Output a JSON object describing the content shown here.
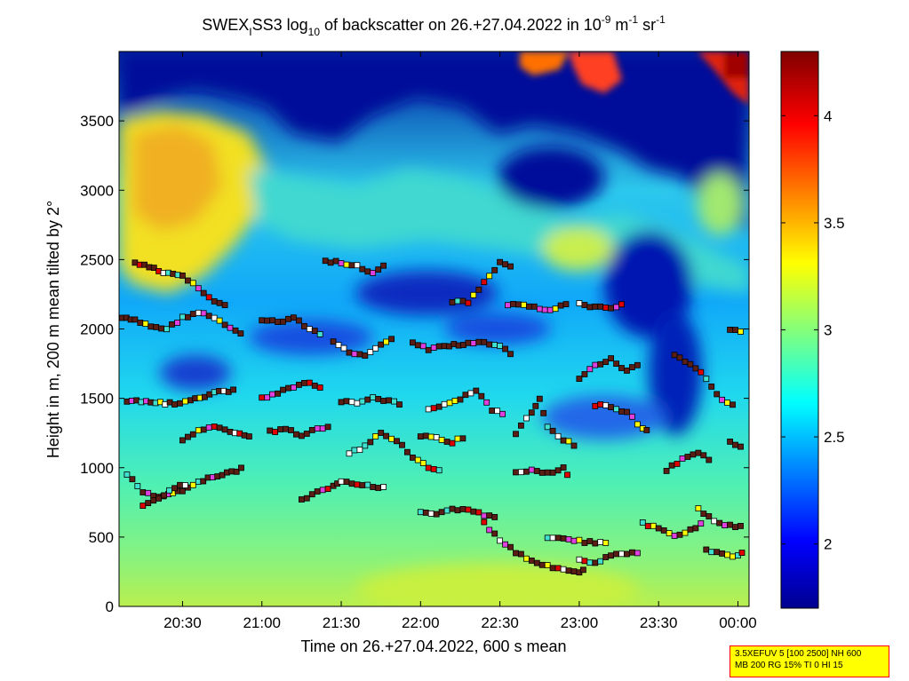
{
  "chart_data": {
    "type": "heatmap",
    "title_parts": {
      "prefix": "SWEX",
      "prefix_sub": "I",
      "name": "SS3 log",
      "log_sub": "10",
      "middle": " of backscatter on 26.+27.04.2022 in 10",
      "exp1": "-9",
      "unit_m": " m",
      "exp2": "-1",
      "unit_sr": " sr",
      "exp3": "-1"
    },
    "xlabel": "Time on 26.+27.04.2022, 600 s mean",
    "ylabel": "Height in m, 200 m mean tilted by 2°",
    "x_ticks": [
      "20:30",
      "21:00",
      "21:30",
      "22:00",
      "22:30",
      "23:00",
      "23:30",
      "00:00"
    ],
    "x_tick_hours": [
      20.5,
      21.0,
      21.5,
      22.0,
      22.5,
      23.0,
      23.5,
      24.0
    ],
    "x_range_hours": [
      20.1,
      24.07
    ],
    "y_ticks": [
      "0",
      "500",
      "1000",
      "1500",
      "2000",
      "2500",
      "3000",
      "3500"
    ],
    "y_tick_values": [
      0,
      500,
      1000,
      1500,
      2000,
      2500,
      3000,
      3500
    ],
    "y_range": [
      0,
      4000
    ],
    "colorbar": {
      "ticks": [
        "2",
        "2.5",
        "3",
        "3.5",
        "4"
      ],
      "tick_values": [
        2,
        2.5,
        3,
        3.5,
        4
      ],
      "range": [
        1.7,
        4.3
      ],
      "colormap": "jet"
    },
    "colormap_stops": [
      "#00008f",
      "#0000ff",
      "#00ffff",
      "#ffff00",
      "#ff0000",
      "#800000"
    ],
    "marker_colors": {
      "dark": "#5a1e14",
      "white": "#ffffff",
      "cyan": "#40e0d0",
      "red": "#e00000",
      "yellow": "#ffff00",
      "magenta": "#e040e0"
    },
    "layers": [
      {
        "name": "layer-a",
        "points": [
          [
            20.12,
            2080
          ],
          [
            20.2,
            2060
          ],
          [
            20.3,
            2020
          ],
          [
            20.4,
            2000
          ],
          [
            20.5,
            2080
          ],
          [
            20.6,
            2120
          ],
          [
            20.7,
            2080
          ],
          [
            20.8,
            2000
          ],
          [
            20.9,
            1950
          ]
        ]
      },
      {
        "name": "layer-b",
        "points": [
          [
            20.2,
            2480
          ],
          [
            20.35,
            2420
          ],
          [
            20.5,
            2380
          ],
          [
            20.6,
            2300
          ],
          [
            20.7,
            2200
          ],
          [
            20.8,
            2150
          ]
        ]
      },
      {
        "name": "layer-c",
        "points": [
          [
            20.15,
            1480
          ],
          [
            20.3,
            1470
          ],
          [
            20.45,
            1460
          ],
          [
            20.55,
            1480
          ],
          [
            20.7,
            1540
          ],
          [
            20.85,
            1560
          ]
        ]
      },
      {
        "name": "layer-d",
        "points": [
          [
            20.5,
            1200
          ],
          [
            20.6,
            1260
          ],
          [
            20.7,
            1300
          ],
          [
            20.8,
            1250
          ],
          [
            20.95,
            1220
          ]
        ]
      },
      {
        "name": "layer-e",
        "points": [
          [
            20.15,
            950
          ],
          [
            20.25,
            830
          ],
          [
            20.35,
            790
          ],
          [
            20.5,
            840
          ],
          [
            20.6,
            900
          ],
          [
            20.75,
            950
          ],
          [
            20.9,
            1000
          ]
        ]
      },
      {
        "name": "layer-f",
        "points": [
          [
            20.25,
            720
          ],
          [
            20.35,
            780
          ],
          [
            20.45,
            860
          ],
          [
            20.55,
            880
          ]
        ]
      },
      {
        "name": "layer-g",
        "points": [
          [
            21.0,
            2060
          ],
          [
            21.1,
            2050
          ],
          [
            21.2,
            2080
          ],
          [
            21.3,
            2000
          ],
          [
            21.4,
            1950
          ]
        ]
      },
      {
        "name": "layer-h",
        "points": [
          [
            21.0,
            1500
          ],
          [
            21.1,
            1540
          ],
          [
            21.2,
            1580
          ],
          [
            21.3,
            1620
          ],
          [
            21.4,
            1550
          ]
        ]
      },
      {
        "name": "layer-i",
        "points": [
          [
            21.05,
            1260
          ],
          [
            21.15,
            1280
          ],
          [
            21.25,
            1230
          ],
          [
            21.35,
            1280
          ],
          [
            21.45,
            1300
          ]
        ]
      },
      {
        "name": "layer-j",
        "points": [
          [
            21.25,
            770
          ],
          [
            21.35,
            820
          ],
          [
            21.45,
            870
          ],
          [
            21.5,
            900
          ],
          [
            21.6,
            880
          ],
          [
            21.7,
            860
          ],
          [
            21.8,
            850
          ]
        ]
      },
      {
        "name": "layer-k",
        "points": [
          [
            21.4,
            2490
          ],
          [
            21.5,
            2480
          ],
          [
            21.6,
            2450
          ],
          [
            21.7,
            2400
          ],
          [
            21.8,
            2490
          ]
        ]
      },
      {
        "name": "layer-l",
        "points": [
          [
            21.45,
            1900
          ],
          [
            21.55,
            1830
          ],
          [
            21.65,
            1800
          ],
          [
            21.75,
            1880
          ],
          [
            21.85,
            1950
          ]
        ]
      },
      {
        "name": "layer-m",
        "points": [
          [
            21.5,
            1480
          ],
          [
            21.6,
            1470
          ],
          [
            21.7,
            1500
          ],
          [
            21.8,
            1480
          ],
          [
            21.9,
            1450
          ]
        ]
      },
      {
        "name": "layer-n",
        "points": [
          [
            21.55,
            1100
          ],
          [
            21.65,
            1150
          ],
          [
            21.75,
            1250
          ],
          [
            21.85,
            1200
          ],
          [
            21.95,
            1080
          ],
          [
            22.05,
            1000
          ],
          [
            22.15,
            960
          ]
        ]
      },
      {
        "name": "layer-o",
        "points": [
          [
            21.95,
            1900
          ],
          [
            22.05,
            1850
          ],
          [
            22.15,
            1880
          ],
          [
            22.3,
            1890
          ],
          [
            22.4,
            1900
          ],
          [
            22.5,
            1870
          ],
          [
            22.6,
            1800
          ]
        ]
      },
      {
        "name": "layer-p",
        "points": [
          [
            22.05,
            1430
          ],
          [
            22.15,
            1450
          ],
          [
            22.25,
            1500
          ],
          [
            22.35,
            1560
          ],
          [
            22.45,
            1420
          ],
          [
            22.55,
            1380
          ]
        ]
      },
      {
        "name": "layer-q",
        "points": [
          [
            22.0,
            1230
          ],
          [
            22.1,
            1220
          ],
          [
            22.2,
            1180
          ],
          [
            22.3,
            1240
          ]
        ]
      },
      {
        "name": "layer-r",
        "points": [
          [
            22.0,
            680
          ],
          [
            22.1,
            660
          ],
          [
            22.2,
            700
          ],
          [
            22.3,
            690
          ],
          [
            22.4,
            660
          ],
          [
            22.5,
            640
          ]
        ]
      },
      {
        "name": "layer-s",
        "points": [
          [
            22.2,
            2200
          ],
          [
            22.3,
            2190
          ],
          [
            22.5,
            2480
          ],
          [
            22.6,
            2450
          ]
        ]
      },
      {
        "name": "layer-t",
        "points": [
          [
            22.4,
            600
          ],
          [
            22.5,
            480
          ],
          [
            22.6,
            390
          ],
          [
            22.7,
            330
          ],
          [
            22.8,
            290
          ],
          [
            22.9,
            260
          ],
          [
            23.0,
            250
          ],
          [
            23.05,
            270
          ]
        ]
      },
      {
        "name": "layer-u",
        "points": [
          [
            22.6,
            960
          ],
          [
            22.7,
            980
          ],
          [
            22.8,
            960
          ],
          [
            22.9,
            1000
          ],
          [
            22.95,
            900
          ]
        ]
      },
      {
        "name": "layer-v",
        "points": [
          [
            22.55,
            2170
          ],
          [
            22.65,
            2180
          ],
          [
            22.75,
            2140
          ],
          [
            22.85,
            2140
          ],
          [
            22.95,
            2200
          ]
        ]
      },
      {
        "name": "layer-w",
        "points": [
          [
            22.6,
            1250
          ],
          [
            22.7,
            1400
          ],
          [
            22.75,
            1500
          ],
          [
            22.8,
            1300
          ],
          [
            22.9,
            1200
          ],
          [
            23.0,
            1150
          ]
        ]
      },
      {
        "name": "layer-x",
        "points": [
          [
            22.8,
            500
          ],
          [
            22.9,
            490
          ],
          [
            23.0,
            470
          ],
          [
            23.1,
            460
          ],
          [
            23.2,
            470
          ]
        ]
      },
      {
        "name": "layer-y",
        "points": [
          [
            23.0,
            330
          ],
          [
            23.1,
            310
          ],
          [
            23.2,
            370
          ],
          [
            23.3,
            380
          ],
          [
            23.4,
            380
          ]
        ]
      },
      {
        "name": "layer-z",
        "points": [
          [
            23.0,
            1640
          ],
          [
            23.1,
            1740
          ],
          [
            23.2,
            1780
          ],
          [
            23.3,
            1700
          ],
          [
            23.4,
            1750
          ]
        ]
      },
      {
        "name": "layer-aa",
        "points": [
          [
            23.0,
            2180
          ],
          [
            23.1,
            2160
          ],
          [
            23.2,
            2150
          ],
          [
            23.3,
            2180
          ]
        ]
      },
      {
        "name": "layer-ab",
        "points": [
          [
            23.1,
            1450
          ],
          [
            23.2,
            1440
          ],
          [
            23.3,
            1400
          ],
          [
            23.4,
            1280
          ],
          [
            23.45,
            1260
          ]
        ]
      },
      {
        "name": "layer-ac",
        "points": [
          [
            23.4,
            600
          ],
          [
            23.5,
            560
          ],
          [
            23.6,
            510
          ],
          [
            23.7,
            550
          ],
          [
            23.8,
            620
          ]
        ]
      },
      {
        "name": "layer-ad",
        "points": [
          [
            23.55,
            980
          ],
          [
            23.65,
            1060
          ],
          [
            23.75,
            1100
          ],
          [
            23.85,
            1040
          ]
        ]
      },
      {
        "name": "layer-ae",
        "points": [
          [
            23.6,
            1820
          ],
          [
            23.7,
            1750
          ],
          [
            23.8,
            1650
          ],
          [
            23.9,
            1480
          ],
          [
            24.0,
            1430
          ]
        ]
      },
      {
        "name": "layer-af",
        "points": [
          [
            23.75,
            700
          ],
          [
            23.85,
            620
          ],
          [
            23.95,
            580
          ],
          [
            24.05,
            570
          ]
        ]
      },
      {
        "name": "layer-ag",
        "points": [
          [
            23.8,
            410
          ],
          [
            23.9,
            380
          ],
          [
            24.0,
            360
          ],
          [
            24.05,
            400
          ]
        ]
      },
      {
        "name": "layer-ah",
        "points": [
          [
            23.95,
            1180
          ],
          [
            24.05,
            1150
          ]
        ]
      },
      {
        "name": "layer-ai",
        "points": [
          [
            23.95,
            1990
          ],
          [
            24.05,
            1970
          ]
        ]
      }
    ]
  },
  "info_box": {
    "line1": "3.5XEFUV 5 [100 2500] NH 600",
    "line2": "MB 200 RG 15% TI 0 HI 15"
  }
}
